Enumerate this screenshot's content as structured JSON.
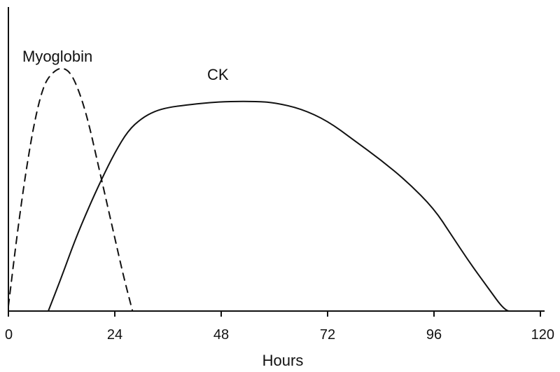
{
  "chart_data": {
    "type": "line",
    "xlabel": "Hours",
    "ylabel": "",
    "xlim": [
      0,
      120
    ],
    "ylim": [
      0,
      100
    ],
    "xticks": [
      0,
      24,
      48,
      72,
      96,
      120
    ],
    "grid": false,
    "series": [
      {
        "name": "Myoglobin",
        "line_style": "dashed",
        "color": "#111111",
        "x": [
          0,
          2,
          4,
          6,
          8,
          10,
          12,
          14,
          16,
          18,
          20,
          22,
          24,
          26,
          28
        ],
        "y": [
          2,
          32,
          58,
          79,
          93,
          98,
          100,
          98,
          90,
          78,
          62,
          46,
          30,
          14,
          0
        ]
      },
      {
        "name": "CK",
        "line_style": "solid",
        "color": "#111111",
        "x": [
          9,
          12,
          15,
          18,
          21,
          24,
          27,
          30,
          33,
          36,
          40,
          45,
          50,
          56,
          60,
          66,
          72,
          78,
          84,
          90,
          96,
          100,
          104,
          108,
          112,
          114
        ],
        "y": [
          0,
          14,
          29,
          42,
          54,
          65,
          74,
          79,
          82,
          83.5,
          84.5,
          85.5,
          86,
          86,
          85.5,
          83,
          78,
          70,
          62,
          53,
          42,
          31,
          20,
          10,
          0,
          0
        ]
      }
    ]
  }
}
